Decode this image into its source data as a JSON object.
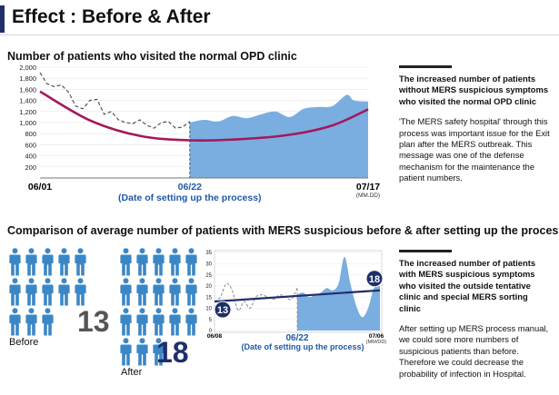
{
  "page_title": "Effect : Before & After",
  "section1": {
    "heading": "Number of patients who visited the normal OPD clinic",
    "side_bold": "The increased number of patients without MERS suspicious symptoms who visited the normal OPD clinic",
    "side_text": "'The MERS safety hospital' through this process was important issue for the Exit plan after the MERS outbreak. This message was one of the defense mechanism for the maintenance the patient numbers."
  },
  "section2": {
    "heading": "Comparison of average number of patients with MERS suspicious before & after setting up the process",
    "side_bold": "The increased number of patients with MERS suspicious symptoms who visited the outside tentative clinic and special MERS sorting clinic",
    "side_text": "After setting up MERS process manual, we could sore more numbers of suspicious patients than before. Therefore we could decrease the probability of infection in Hospital.",
    "before": {
      "count": 13,
      "number_label": "13",
      "label": "Before",
      "icon_color": "#3b87c6",
      "number_color": "#555555"
    },
    "after": {
      "count": 18,
      "number_label": "18",
      "label": "After",
      "icon_color": "#3b87c6",
      "number_color": "#1f2f6b"
    }
  },
  "chart_data": [
    {
      "type": "area",
      "ylim": [
        0,
        2000
      ],
      "yticks": [
        "2,000",
        "1,800",
        "1,600",
        "1,400",
        "1,200",
        "1,000",
        "800",
        "600",
        "400",
        "200"
      ],
      "ytick_values": [
        2000,
        1800,
        1600,
        1400,
        1200,
        1000,
        800,
        600,
        400,
        200
      ],
      "xtick_start": "06/01",
      "xtick_mid": "06/22",
      "xtick_end": "07/17",
      "xunit": "(MM.DD)",
      "annotation": "(Date of setting up the process)",
      "x_range": [
        "06/01",
        "07/17"
      ],
      "divider_x": "06/22",
      "before_series": {
        "x": [
          "06/01",
          "06/02",
          "06/03",
          "06/04",
          "06/05",
          "06/06",
          "06/07",
          "06/08",
          "06/09",
          "06/10",
          "06/11",
          "06/12",
          "06/13",
          "06/14",
          "06/15",
          "06/16",
          "06/17",
          "06/18",
          "06/19",
          "06/20",
          "06/21",
          "06/22"
        ],
        "y": [
          1900,
          1700,
          1650,
          1680,
          1550,
          1300,
          1250,
          1400,
          1420,
          1150,
          1200,
          1050,
          1000,
          980,
          1050,
          950,
          900,
          1000,
          1020,
          900,
          920,
          1020
        ]
      },
      "after_series": {
        "x": [
          "06/22",
          "06/24",
          "06/26",
          "06/28",
          "06/30",
          "07/02",
          "07/04",
          "07/06",
          "07/08",
          "07/10",
          "07/12",
          "07/14",
          "07/15",
          "07/17"
        ],
        "y": [
          1000,
          1050,
          1020,
          1120,
          1080,
          1150,
          1200,
          1100,
          1250,
          1280,
          1300,
          1500,
          1400,
          1380
        ]
      },
      "trend": {
        "x": [
          "06/01",
          "06/08",
          "06/15",
          "06/22",
          "06/29",
          "07/06",
          "07/12",
          "07/17"
        ],
        "y": [
          1560,
          1040,
          760,
          680,
          700,
          780,
          950,
          1240
        ]
      },
      "colors": {
        "area": "#7aaee0",
        "trend": "#a3195b",
        "dashed": "#555555",
        "axis": "#777777",
        "annotation": "#1f5aa6"
      }
    },
    {
      "type": "area",
      "ylim": [
        0,
        35
      ],
      "yticks": [
        "35",
        "30",
        "25",
        "20",
        "15",
        "10",
        "5",
        "0"
      ],
      "ytick_values": [
        35,
        30,
        25,
        20,
        15,
        10,
        5,
        0
      ],
      "xtick_start": "06/08",
      "xtick_mid": "06/22",
      "xtick_end": "07/06",
      "xunit": "(MM/DD)",
      "annotation": "(Date of setting up the process)",
      "x_range": [
        "06/08",
        "07/06"
      ],
      "divider_x": "06/22",
      "before_series": {
        "x": [
          "06/08",
          "06/09",
          "06/10",
          "06/11",
          "06/12",
          "06/13",
          "06/14",
          "06/15",
          "06/16",
          "06/17",
          "06/18",
          "06/19",
          "06/20",
          "06/21",
          "06/22"
        ],
        "y": [
          13,
          15,
          21,
          18,
          9,
          13,
          10,
          15,
          16,
          15,
          14,
          16,
          15,
          14,
          19
        ]
      },
      "after_series": {
        "x": [
          "06/22",
          "06/23",
          "06/24",
          "06/25",
          "06/26",
          "06/27",
          "06/28",
          "06/29",
          "06/30",
          "07/01",
          "07/02",
          "07/03",
          "07/04",
          "07/05",
          "07/06"
        ],
        "y": [
          16,
          17,
          15,
          16,
          17,
          19,
          18,
          21,
          33,
          21,
          11,
          6,
          10,
          19,
          20
        ]
      },
      "trend": {
        "x": [
          "06/08",
          "07/06"
        ],
        "y": [
          13,
          18
        ]
      },
      "start_label": "13",
      "end_label": "18",
      "colors": {
        "area": "#7aaee0",
        "trend": "#1f2f6b",
        "dashed": "#888888",
        "axis": "#777777",
        "annotation": "#1f5aa6"
      }
    }
  ]
}
